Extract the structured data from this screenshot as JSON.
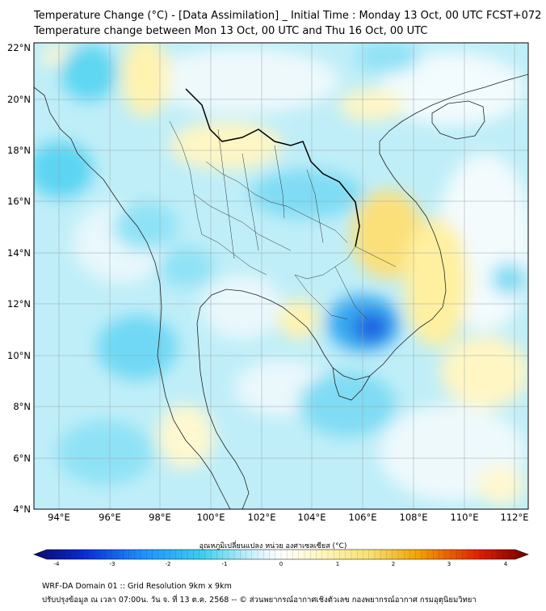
{
  "title": {
    "line1": "Temperature Change (°C) - [Data Assimilation] _ Initial Time : Monday 13 Oct, 00 UTC FCST+072",
    "line2": "Temperature change between Mon 13 Oct, 00 UTC and Thu 16 Oct, 00 UTC"
  },
  "lat_labels": [
    "22°N",
    "20°N",
    "18°N",
    "16°N",
    "14°N",
    "12°N",
    "10°N",
    "8°N",
    "6°N",
    "4°N"
  ],
  "lon_labels": [
    "94°E",
    "96°E",
    "98°E",
    "100°E",
    "102°E",
    "104°E",
    "106°E",
    "108°E",
    "110°E",
    "112°E"
  ],
  "colorbar": {
    "title": "อุณหภูมิเปลี่ยนแปลง หน่วย องศาเซลเซียส (°C)",
    "ticks": [
      "-4",
      "-3",
      "-2",
      "-1",
      "0",
      "1",
      "2",
      "3",
      "4"
    ],
    "min": -4,
    "max": 4,
    "colors": [
      "#0a0a6e",
      "#0a2bd0",
      "#1e90ff",
      "#3ccfee",
      "#e6f7ff",
      "#ffffff",
      "#fff6c0",
      "#f7e070",
      "#f2a000",
      "#e02000",
      "#6e0000"
    ]
  },
  "footer": {
    "line1": "WRF-DA Domain 01 :: Grid Resolution 9km x 9km",
    "line2": "ปรับปรุงข้อมูล ณ เวลา 07:00น. วัน จ. ที่ 13 ต.ค. 2568 -- © ส่วนพยากรณ์อากาศเชิงตัวเลข กองพยากรณ์อากาศ กรมอุตุนิยมวิทยา"
  }
}
